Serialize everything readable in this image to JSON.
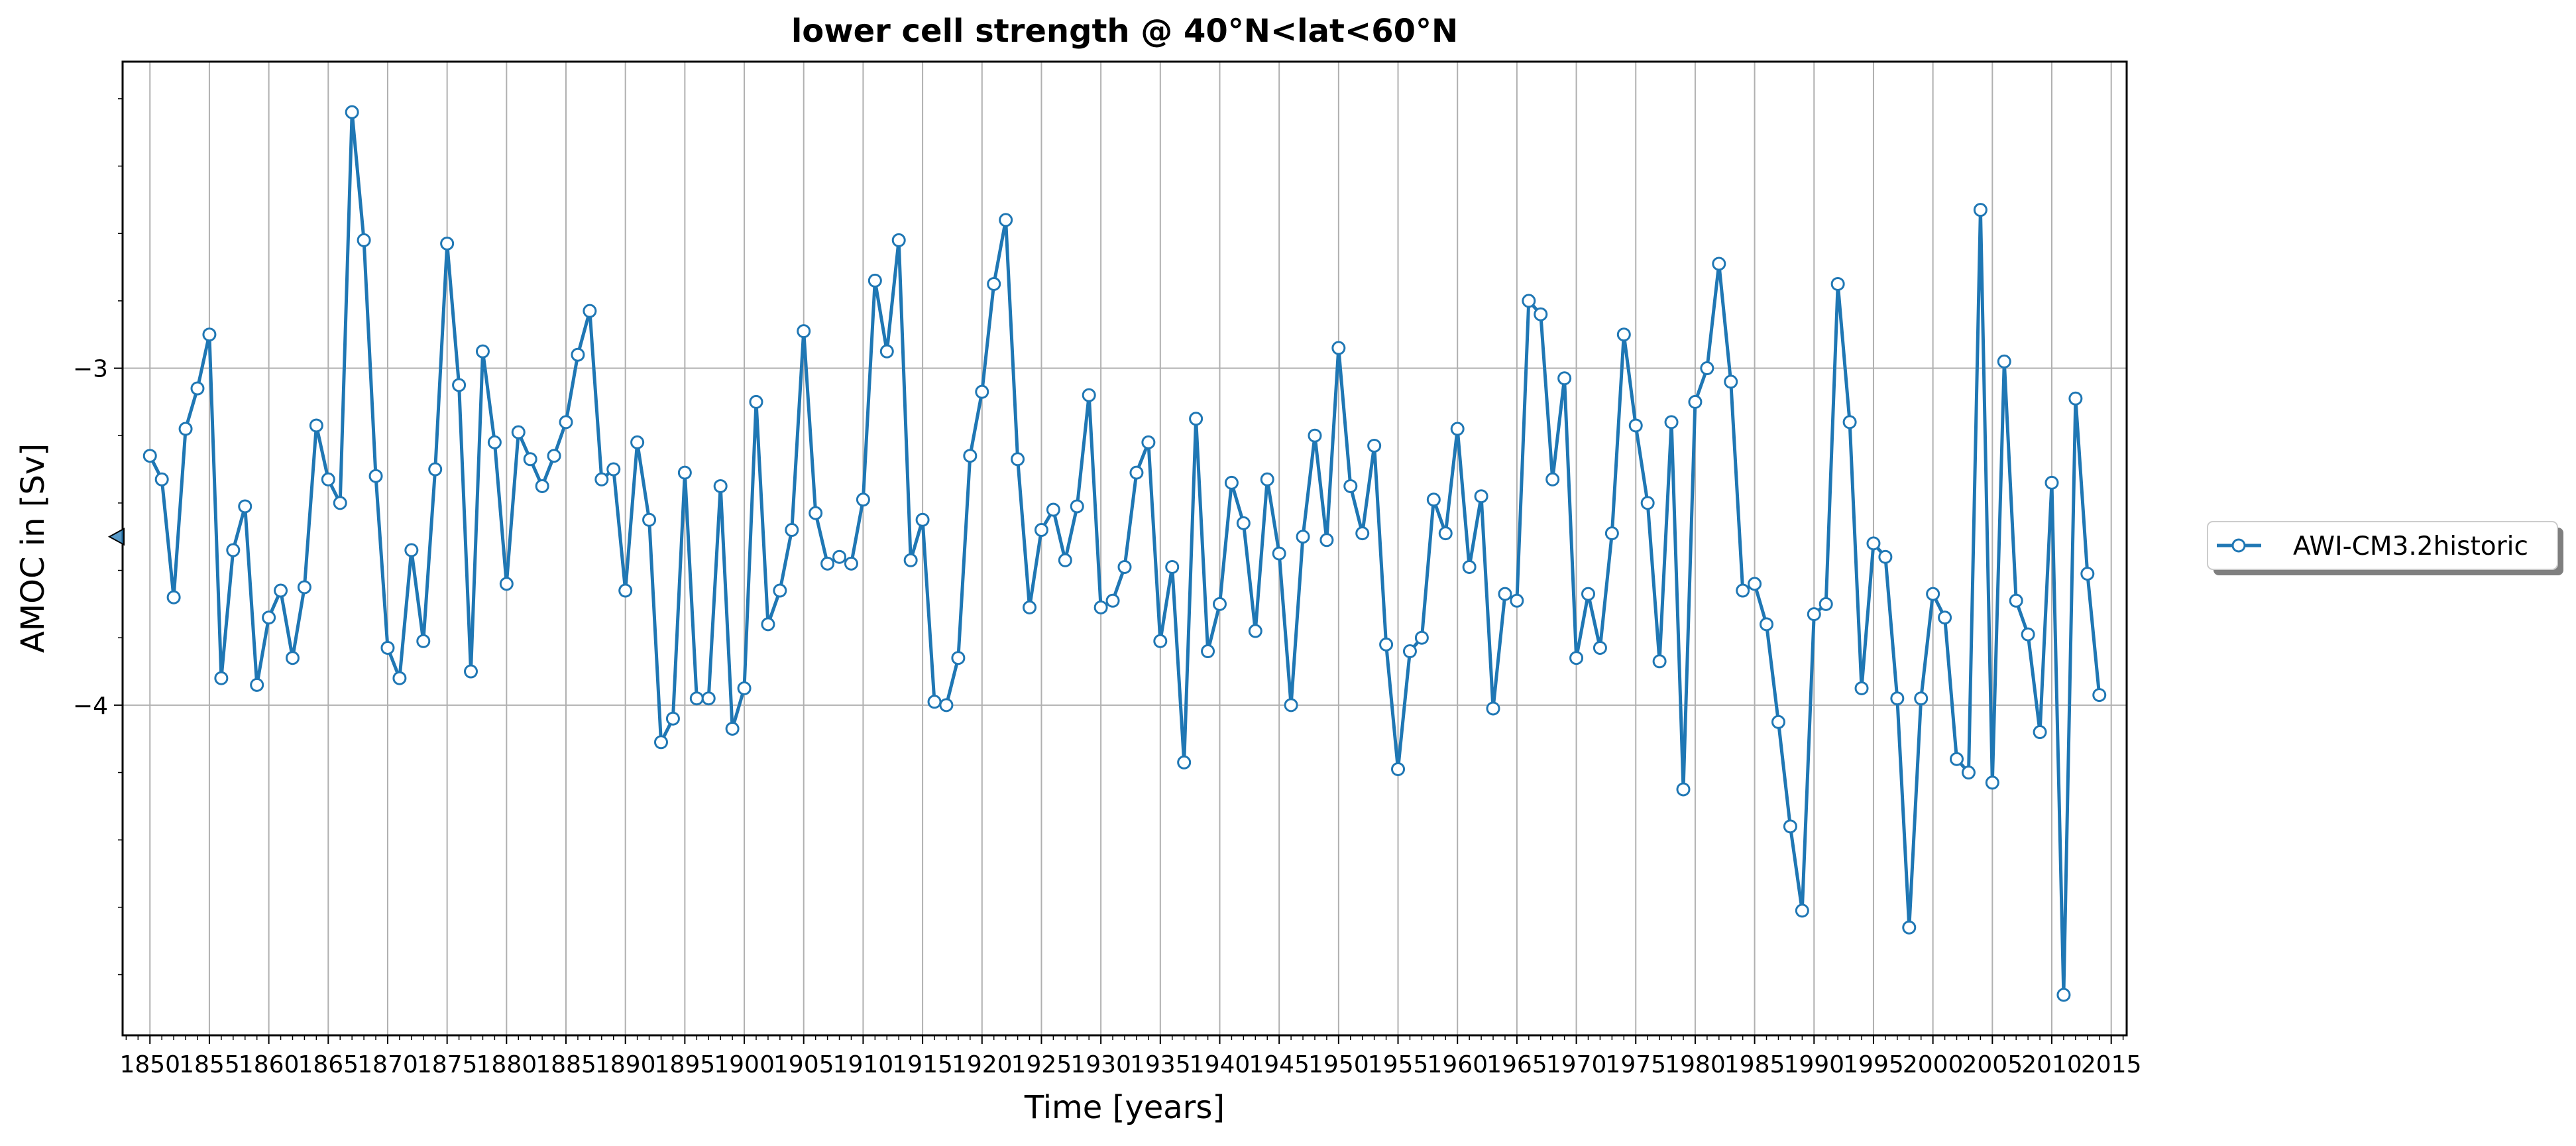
{
  "chart_data": {
    "type": "line",
    "title": "lower cell strength @ 40°N<lat<60°N",
    "xlabel": "Time [years]",
    "ylabel": "AMOC in [Sv]",
    "xlim": [
      1847.7,
      2016.3
    ],
    "ylim": [
      -4.98,
      -2.09
    ],
    "x_ticks": [
      1850,
      1855,
      1860,
      1865,
      1870,
      1875,
      1880,
      1885,
      1890,
      1895,
      1900,
      1905,
      1910,
      1915,
      1920,
      1925,
      1930,
      1935,
      1940,
      1945,
      1950,
      1955,
      1960,
      1965,
      1970,
      1975,
      1980,
      1985,
      1990,
      1995,
      2000,
      2005,
      2010,
      2015
    ],
    "y_ticks": [
      -3,
      -4
    ],
    "y_tick_labels": [
      "−3",
      "−4"
    ],
    "grid": true,
    "legend_position": "right-outside",
    "colors": {
      "line": "#1f77b4",
      "marker_face": "#ffffff",
      "grid": "#b0b0b0"
    },
    "mean_indicator": -3.5,
    "series": [
      {
        "name": "AWI-CM3.2historic",
        "x": [
          1850,
          1851,
          1852,
          1853,
          1854,
          1855,
          1856,
          1857,
          1858,
          1859,
          1860,
          1861,
          1862,
          1863,
          1864,
          1865,
          1866,
          1867,
          1868,
          1869,
          1870,
          1871,
          1872,
          1873,
          1874,
          1875,
          1876,
          1877,
          1878,
          1879,
          1880,
          1881,
          1882,
          1883,
          1884,
          1885,
          1886,
          1887,
          1888,
          1889,
          1890,
          1891,
          1892,
          1893,
          1894,
          1895,
          1896,
          1897,
          1898,
          1899,
          1900,
          1901,
          1902,
          1903,
          1904,
          1905,
          1906,
          1907,
          1908,
          1909,
          1910,
          1911,
          1912,
          1913,
          1914,
          1915,
          1916,
          1917,
          1918,
          1919,
          1920,
          1921,
          1922,
          1923,
          1924,
          1925,
          1926,
          1927,
          1928,
          1929,
          1930,
          1931,
          1932,
          1933,
          1934,
          1935,
          1936,
          1937,
          1938,
          1939,
          1940,
          1941,
          1942,
          1943,
          1944,
          1945,
          1946,
          1947,
          1948,
          1949,
          1950,
          1951,
          1952,
          1953,
          1954,
          1955,
          1956,
          1957,
          1958,
          1959,
          1960,
          1961,
          1962,
          1963,
          1964,
          1965,
          1966,
          1967,
          1968,
          1969,
          1970,
          1971,
          1972,
          1973,
          1974,
          1975,
          1976,
          1977,
          1978,
          1979,
          1980,
          1981,
          1982,
          1983,
          1984,
          1985,
          1986,
          1987,
          1988,
          1989,
          1990,
          1991,
          1992,
          1993,
          1994,
          1995,
          1996,
          1997,
          1998,
          1999,
          2000,
          2001,
          2002,
          2003,
          2004,
          2005,
          2006,
          2007,
          2008,
          2009,
          2010,
          2011,
          2012,
          2013,
          2014
        ],
        "y": [
          -3.26,
          -3.33,
          -3.68,
          -3.18,
          -3.06,
          -2.9,
          -3.92,
          -3.54,
          -3.41,
          -3.94,
          -3.74,
          -3.66,
          -3.86,
          -3.65,
          -3.17,
          -3.33,
          -3.4,
          -2.24,
          -2.62,
          -3.32,
          -3.83,
          -3.92,
          -3.54,
          -3.81,
          -3.3,
          -2.63,
          -3.05,
          -3.9,
          -2.95,
          -3.22,
          -3.64,
          -3.19,
          -3.27,
          -3.35,
          -3.26,
          -3.16,
          -2.96,
          -2.83,
          -3.33,
          -3.3,
          -3.66,
          -3.22,
          -3.45,
          -4.11,
          -4.04,
          -3.31,
          -3.98,
          -3.98,
          -3.35,
          -4.07,
          -3.95,
          -3.1,
          -3.76,
          -3.66,
          -3.48,
          -2.89,
          -3.43,
          -3.58,
          -3.56,
          -3.58,
          -3.39,
          -2.74,
          -2.95,
          -2.62,
          -3.57,
          -3.45,
          -3.99,
          -4.0,
          -3.86,
          -3.26,
          -3.07,
          -2.75,
          -2.56,
          -3.27,
          -3.71,
          -3.48,
          -3.42,
          -3.57,
          -3.41,
          -3.08,
          -3.71,
          -3.69,
          -3.59,
          -3.31,
          -3.22,
          -3.81,
          -3.59,
          -4.17,
          -3.15,
          -3.84,
          -3.7,
          -3.34,
          -3.46,
          -3.78,
          -3.33,
          -3.55,
          -4.0,
          -3.5,
          -3.2,
          -3.51,
          -2.94,
          -3.35,
          -3.49,
          -3.23,
          -3.82,
          -4.19,
          -3.84,
          -3.8,
          -3.39,
          -3.49,
          -3.18,
          -3.59,
          -3.38,
          -4.01,
          -3.67,
          -3.69,
          -2.8,
          -2.84,
          -3.33,
          -3.03,
          -3.86,
          -3.67,
          -3.83,
          -3.49,
          -2.9,
          -3.17,
          -3.4,
          -3.87,
          -3.16,
          -4.25,
          -3.1,
          -3.0,
          -2.69,
          -3.04,
          -3.66,
          -3.64,
          -3.76,
          -4.05,
          -4.36,
          -4.61,
          -3.73,
          -3.7,
          -2.75,
          -3.16,
          -3.95,
          -3.52,
          -3.56,
          -3.98,
          -4.66,
          -3.98,
          -3.67,
          -3.74,
          -4.16,
          -4.2,
          -2.53,
          -4.23,
          -2.98,
          -3.69,
          -3.79,
          -4.08,
          -3.34,
          -4.86,
          -3.09,
          -3.61,
          -3.97
        ]
      }
    ]
  }
}
